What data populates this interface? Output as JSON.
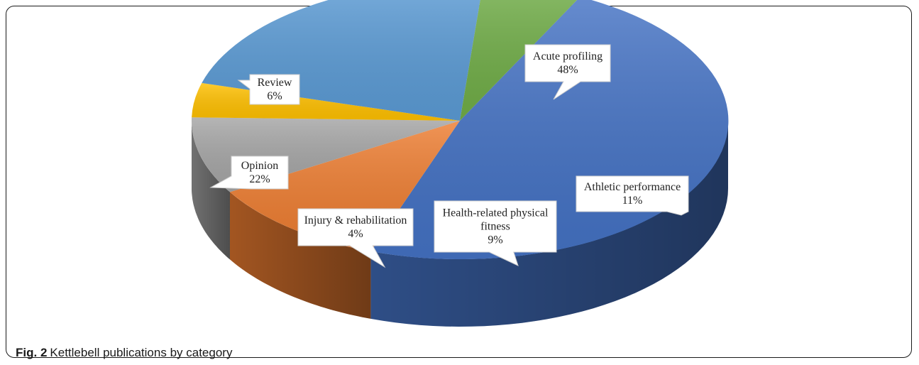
{
  "caption": {
    "figure_label": "Fig. 2",
    "text": "Kettlebell publications by category"
  },
  "chart_data": {
    "type": "pie",
    "style": "3d",
    "title": "",
    "slices": [
      {
        "label": "Acute profiling",
        "value": 48,
        "value_label": "48%",
        "color": "#4472C4"
      },
      {
        "label": "Athletic performance",
        "value": 11,
        "value_label": "11%",
        "color": "#ED7D31"
      },
      {
        "label": "Health-related physical fitness",
        "value": 9,
        "value_label": "9%",
        "color": "#A5A5A5"
      },
      {
        "label": "Injury & rehabilitation",
        "value": 4,
        "value_label": "4%",
        "color": "#FFC000"
      },
      {
        "label": "Opinion",
        "value": 22,
        "value_label": "22%",
        "color": "#5B9BD5"
      },
      {
        "label": "Review",
        "value": 6,
        "value_label": "6%",
        "color": "#70AD47"
      }
    ],
    "legend": "none"
  }
}
